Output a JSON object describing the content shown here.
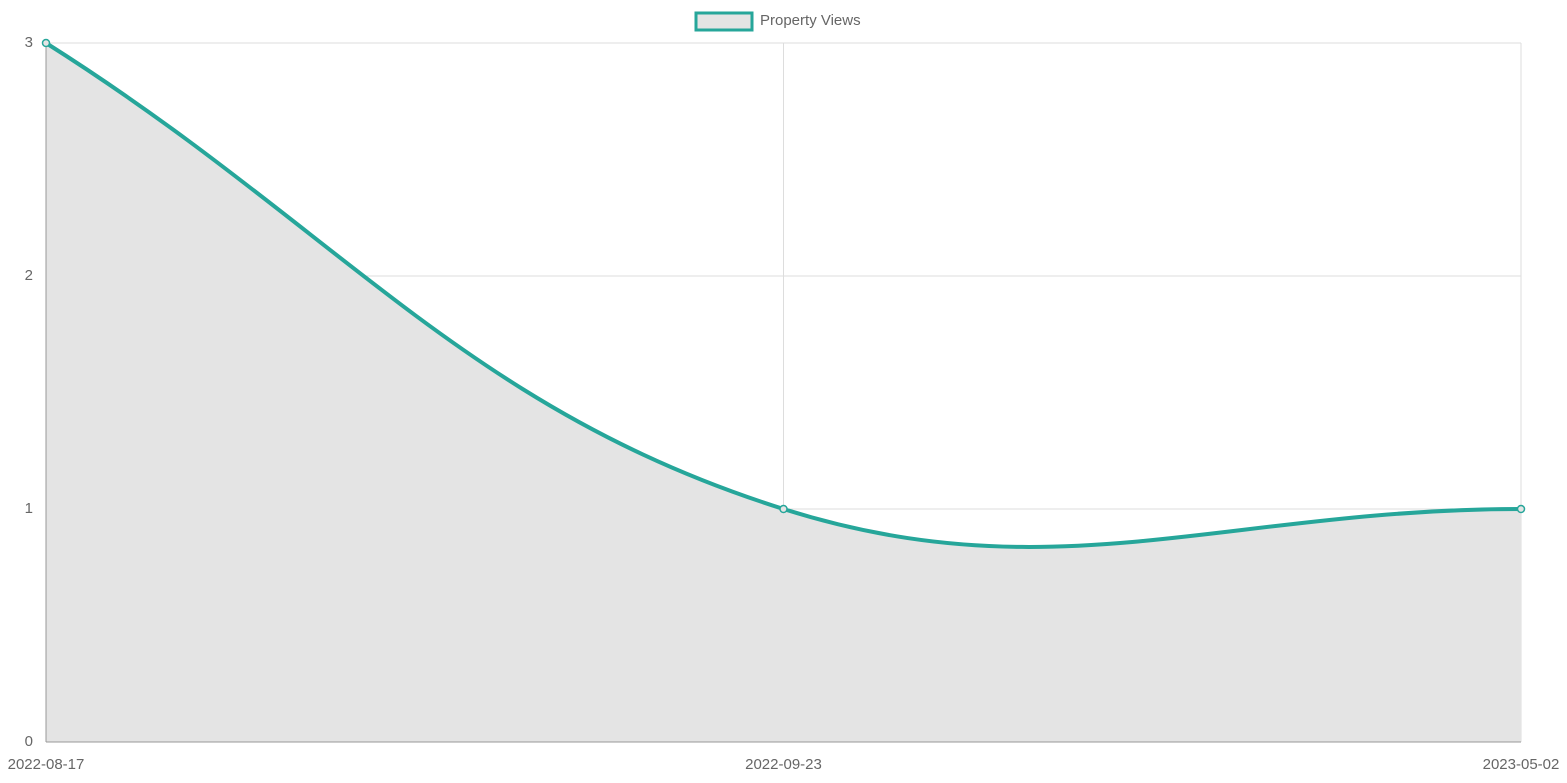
{
  "chart_data": {
    "type": "line",
    "categories": [
      "2022-08-17",
      "2022-09-23",
      "2023-05-02"
    ],
    "series": [
      {
        "name": "Property Views",
        "color": "#26a69a",
        "fill": "#e4e4e4",
        "values": [
          3,
          1,
          1
        ]
      }
    ],
    "ylim": [
      0,
      3
    ],
    "yticks": [
      0,
      1,
      2,
      3
    ],
    "grid": true,
    "legend": "top"
  }
}
